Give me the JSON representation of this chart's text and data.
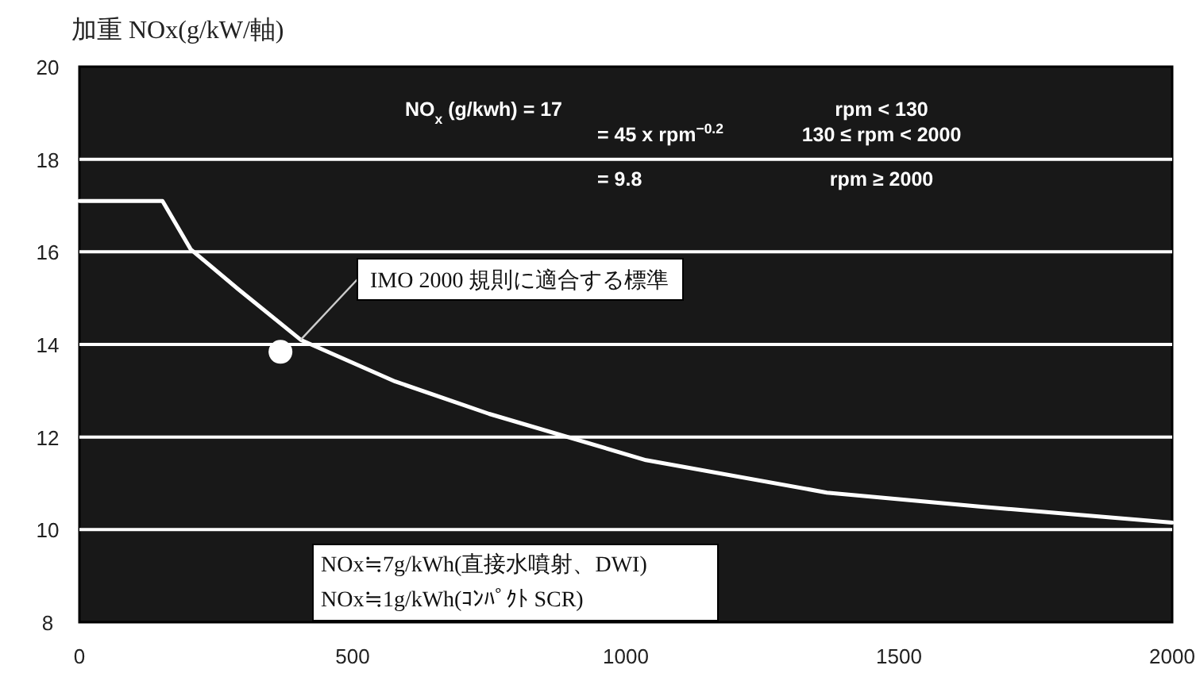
{
  "chart_data": {
    "type": "line",
    "title": "加重 NOx(g/kW/軸)",
    "xlim": [
      0,
      2000
    ],
    "xticks": [
      0,
      500,
      1000,
      1500,
      2000
    ],
    "ylim": [
      8,
      20
    ],
    "yticks": [
      8,
      10,
      12,
      14,
      16,
      18,
      20
    ],
    "grid": "y",
    "line_style": "solid",
    "series": [
      {
        "color": "#ffffff",
        "marker": "none",
        "x": [
          0,
          152,
          204,
          290,
          405,
          578,
          750,
          1037,
          1368,
          1647,
          2000
        ],
        "values": [
          17.1,
          17.1,
          16.05,
          15.2,
          14.1,
          13.2,
          12.5,
          11.5,
          10.8,
          10.5,
          10.15
        ]
      },
      {
        "type": "scatter",
        "color": "#ffffff",
        "marker": "circle",
        "x": [
          368
        ],
        "values": [
          13.84
        ]
      }
    ],
    "annotations": [
      "NO$_{x}$ (g/kwh) = 17",
      "= 45 x rpm$^{−0.2}$",
      "= 9.8",
      "rpm < 130",
      "130 ≤ rpm < 2000",
      "rpm ≥ 2000",
      {
        "text": "IMO 2000 規則に適合する標準",
        "x": 405,
        "y": 14.1
      },
      "NOx≒7g/kWh(直接水噴射、DWI)",
      "NOx≒1g/kWh(ｺﾝﾊﾟｸﾄ SCR)"
    ]
  }
}
